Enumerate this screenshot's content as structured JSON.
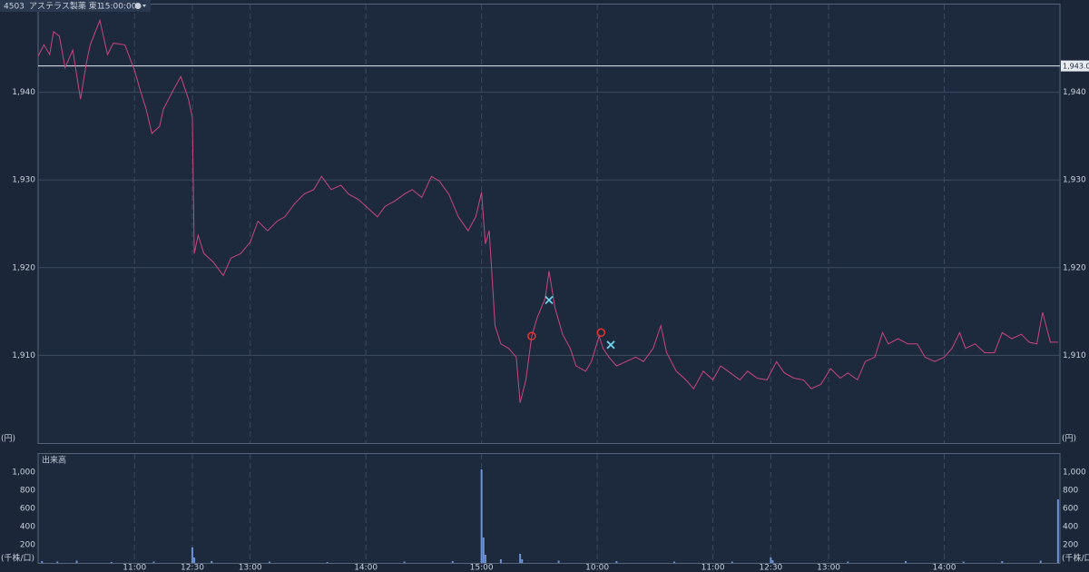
{
  "header": {
    "code": "4503",
    "name": "アステラス製薬 東1",
    "time": "15:00:00"
  },
  "chart_data": [
    {
      "type": "line",
      "y_unit_label": "(円)",
      "xlim": [
        0,
        530
      ],
      "xticks": [
        {
          "value": 50,
          "label": "11:00"
        },
        {
          "value": 80,
          "label": "12:30"
        },
        {
          "value": 110,
          "label": "13:00"
        },
        {
          "value": 170,
          "label": "14:00"
        },
        {
          "value": 230,
          "label": "15:00"
        },
        {
          "value": 290,
          "label": "10:00"
        },
        {
          "value": 350,
          "label": "11:00"
        },
        {
          "value": 380,
          "label": "12:30"
        },
        {
          "value": 410,
          "label": "13:00"
        },
        {
          "value": 470,
          "label": "14:00"
        }
      ],
      "ylim": [
        1900,
        1950
      ],
      "yticks": [
        {
          "value": 1910,
          "label": "1,910"
        },
        {
          "value": 1920,
          "label": "1,920"
        },
        {
          "value": 1930,
          "label": "1,930"
        },
        {
          "value": 1940,
          "label": "1,940"
        }
      ],
      "grid": true,
      "reference_line": {
        "value": 1943,
        "label": "1,943.0"
      },
      "series": [
        {
          "color": "#c8467e",
          "x": [
            0,
            3,
            6,
            8,
            11,
            14,
            18,
            22,
            25,
            27,
            32,
            36,
            39,
            45,
            50,
            53,
            56,
            59,
            63,
            65,
            70,
            74,
            78,
            80,
            81,
            83,
            86,
            91,
            96,
            100,
            105,
            110,
            114,
            119,
            124,
            128,
            133,
            138,
            143,
            147,
            152,
            157,
            161,
            166,
            171,
            176,
            180,
            185,
            190,
            194,
            199,
            204,
            208,
            213,
            218,
            223,
            227,
            230,
            232,
            234,
            237,
            240,
            244,
            248,
            250,
            253,
            256,
            259,
            263,
            265,
            268,
            272,
            276,
            279,
            284,
            287,
            291,
            293,
            296,
            300,
            305,
            310,
            314,
            319,
            323,
            326,
            331,
            336,
            340,
            345,
            350,
            354,
            359,
            364,
            368,
            373,
            378,
            383,
            387,
            392,
            397,
            401,
            406,
            411,
            416,
            420,
            425,
            429,
            434,
            438,
            441,
            446,
            451,
            456,
            460,
            465,
            470,
            474,
            478,
            481,
            486,
            491,
            496,
            500,
            505,
            510,
            514,
            518,
            521,
            525,
            529
          ],
          "values": [
            1944.1,
            1945.4,
            1944.3,
            1946.9,
            1946.4,
            1942.8,
            1944.8,
            1939.2,
            1943.3,
            1945.4,
            1948.2,
            1944.3,
            1945.6,
            1945.4,
            1942.5,
            1940.2,
            1938.1,
            1935.3,
            1936.1,
            1938.1,
            1940.2,
            1941.8,
            1939.2,
            1937.1,
            1921.6,
            1923.7,
            1921.6,
            1920.6,
            1919.1,
            1921.1,
            1921.6,
            1922.9,
            1925.3,
            1924.2,
            1925.3,
            1925.8,
            1927.3,
            1928.4,
            1928.9,
            1930.4,
            1928.9,
            1929.4,
            1928.4,
            1927.8,
            1926.8,
            1925.8,
            1927.0,
            1927.6,
            1928.4,
            1928.9,
            1928.0,
            1930.4,
            1929.9,
            1928.4,
            1925.8,
            1924.2,
            1925.8,
            1928.6,
            1922.7,
            1924.2,
            1913.4,
            1911.3,
            1910.8,
            1909.8,
            1904.6,
            1907.2,
            1912.2,
            1914.4,
            1916.5,
            1919.6,
            1915.5,
            1912.4,
            1910.8,
            1908.8,
            1908.2,
            1909.3,
            1912.2,
            1910.8,
            1909.8,
            1908.8,
            1909.3,
            1909.8,
            1909.3,
            1910.8,
            1913.4,
            1910.3,
            1908.2,
            1907.2,
            1906.2,
            1908.2,
            1907.2,
            1908.8,
            1908.0,
            1907.2,
            1908.2,
            1907.4,
            1907.2,
            1909.3,
            1908.0,
            1907.4,
            1907.2,
            1906.2,
            1906.7,
            1908.5,
            1907.4,
            1908.0,
            1907.2,
            1909.3,
            1909.8,
            1912.6,
            1911.3,
            1911.9,
            1911.3,
            1911.3,
            1909.8,
            1909.3,
            1909.8,
            1910.8,
            1912.6,
            1910.8,
            1911.3,
            1910.3,
            1910.3,
            1912.6,
            1911.9,
            1912.4,
            1911.5,
            1911.3,
            1914.9,
            1911.5,
            1911.5
          ]
        }
      ],
      "buy_markers": {
        "color": "#e8342c",
        "x": [
          256,
          292
        ],
        "y": [
          1912.2,
          1912.6
        ]
      },
      "sell_markers": {
        "color": "#6fd3ea",
        "x": [
          265,
          297
        ],
        "y": [
          1916.3,
          1911.2
        ]
      }
    },
    {
      "type": "bar",
      "title": "出来高",
      "y_unit_label": "(千株/口)",
      "xlim": [
        0,
        530
      ],
      "xticks": [
        {
          "value": 50,
          "label": "11:00"
        },
        {
          "value": 80,
          "label": "12:30"
        },
        {
          "value": 110,
          "label": "13:00"
        },
        {
          "value": 170,
          "label": "14:00"
        },
        {
          "value": 230,
          "label": "15:00"
        },
        {
          "value": 290,
          "label": "10:00"
        },
        {
          "value": 350,
          "label": "11:00"
        },
        {
          "value": 380,
          "label": "12:30"
        },
        {
          "value": 410,
          "label": "13:00"
        },
        {
          "value": 470,
          "label": "14:00"
        }
      ],
      "ylim": [
        0,
        1200
      ],
      "yticks": [
        200,
        400,
        600,
        800,
        {
          "value": 1000,
          "label": "1,000"
        }
      ],
      "color": "#6c93d6",
      "x": [
        2,
        10,
        20,
        38,
        60,
        80,
        81,
        90,
        120,
        150,
        190,
        215,
        230,
        231,
        232,
        240,
        250,
        251,
        270,
        300,
        330,
        360,
        380,
        381,
        420,
        450,
        480,
        500,
        520,
        529
      ],
      "values": [
        20,
        15,
        25,
        10,
        15,
        170,
        60,
        20,
        15,
        10,
        15,
        20,
        1030,
        280,
        90,
        40,
        100,
        40,
        25,
        20,
        15,
        15,
        60,
        30,
        15,
        20,
        15,
        20,
        25,
        700
      ]
    }
  ]
}
